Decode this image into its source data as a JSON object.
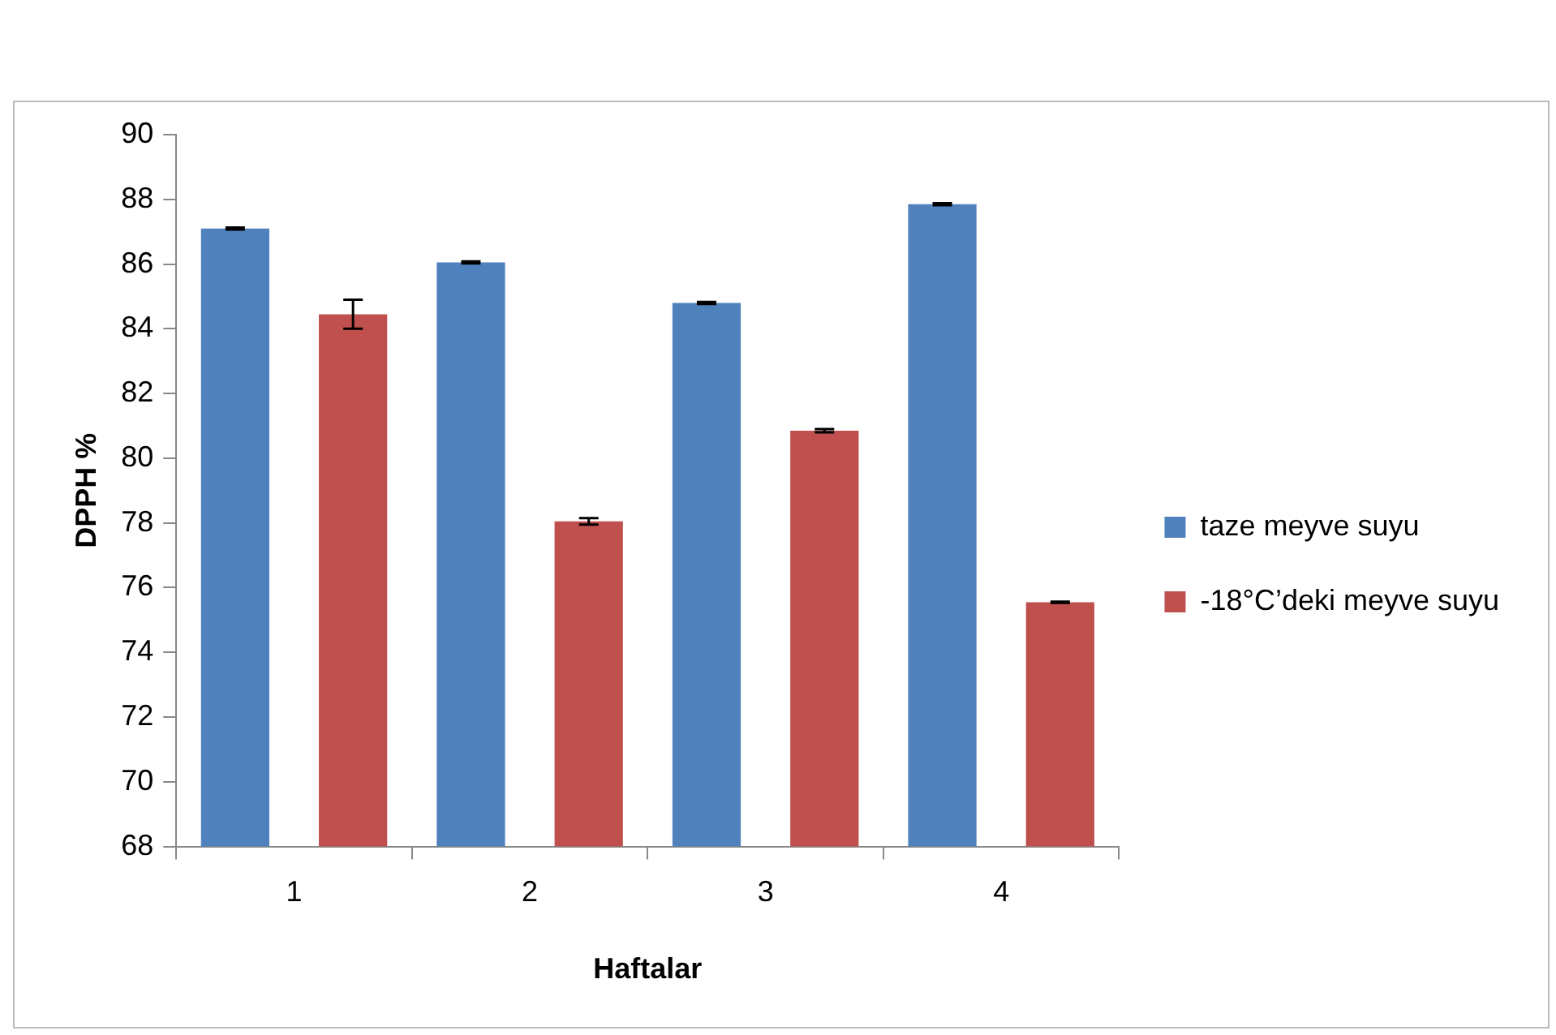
{
  "chart_data": {
    "type": "bar",
    "xlabel": "Haftalar",
    "ylabel": "DPPH %",
    "categories": [
      "1",
      "2",
      "3",
      "4"
    ],
    "series": [
      {
        "name": "taze meyve suyu",
        "color": "#4f81bd",
        "values": [
          87.1,
          86.05,
          84.8,
          87.85
        ],
        "errors": [
          0.03,
          0.03,
          0.03,
          0.03
        ]
      },
      {
        "name": "-18°C’deki meyve suyu",
        "color": "#c0504d",
        "values": [
          84.45,
          78.05,
          80.85,
          75.55
        ],
        "errors": [
          0.45,
          0.1,
          0.05,
          0.02
        ]
      }
    ],
    "ylim": [
      68,
      90
    ],
    "yticks": [
      68,
      70,
      72,
      74,
      76,
      78,
      80,
      82,
      84,
      86,
      88,
      90
    ],
    "grid": false,
    "legend": "right"
  }
}
